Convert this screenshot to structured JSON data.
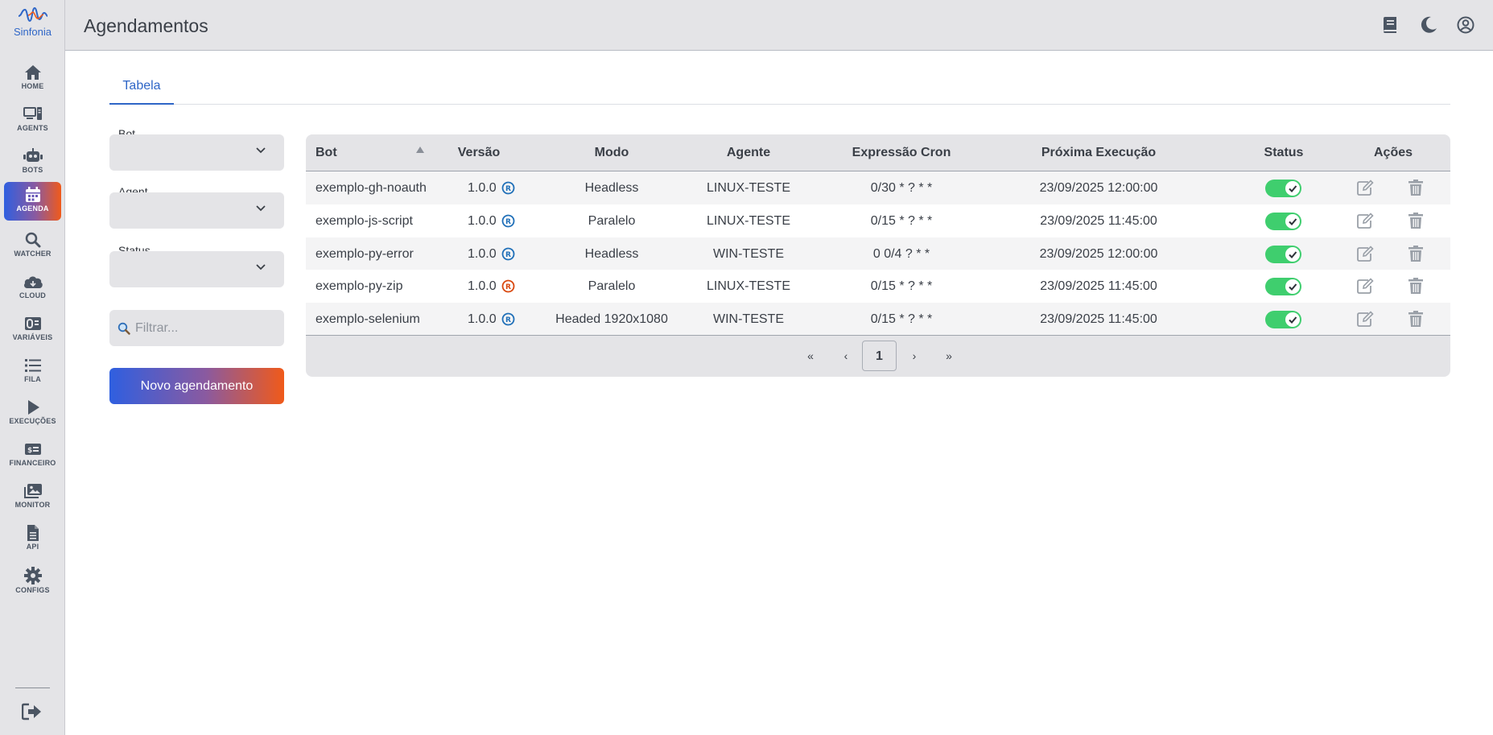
{
  "app": {
    "logo_text": "Sinfonia",
    "brand_color": "#2f66c7",
    "accent_gradient": [
      "#2f5fe0",
      "#8a5aa0",
      "#f05a1a"
    ]
  },
  "sidebar": {
    "items": [
      {
        "label": "HOME",
        "icon": "home-icon"
      },
      {
        "label": "AGENTS",
        "icon": "agents-icon"
      },
      {
        "label": "BOTS",
        "icon": "robot-icon"
      },
      {
        "label": "AGENDA",
        "icon": "calendar-icon",
        "active": true
      },
      {
        "label": "WATCHER",
        "icon": "search-icon"
      },
      {
        "label": "CLOUD",
        "icon": "cloud-icon"
      },
      {
        "label": "VARIÁVEIS",
        "icon": "variables-icon"
      },
      {
        "label": "FILA",
        "icon": "list-icon"
      },
      {
        "label": "EXECUÇÕES",
        "icon": "play-icon"
      },
      {
        "label": "FINANCEIRO",
        "icon": "money-icon"
      },
      {
        "label": "MONITOR",
        "icon": "images-icon"
      },
      {
        "label": "API",
        "icon": "file-icon"
      },
      {
        "label": "CONFIGS",
        "icon": "gear-icon"
      }
    ],
    "logout_icon": "logout-icon"
  },
  "header": {
    "title": "Agendamentos",
    "icons": [
      "book-icon",
      "moon-icon",
      "user-circle-icon"
    ]
  },
  "tabs": [
    {
      "label": "Tabela",
      "active": true
    }
  ],
  "filters": {
    "bot_label": "Bot",
    "agent_label": "Agent",
    "status_label": "Status",
    "search_placeholder": "Filtrar...",
    "new_button": "Novo agendamento"
  },
  "table": {
    "columns": [
      "Bot",
      "Versão",
      "Modo",
      "Agente",
      "Expressão Cron",
      "Próxima Execução",
      "Status",
      "Ações"
    ],
    "sort_column": "Bot",
    "sort_direction": "ascending",
    "rows": [
      {
        "bot": "exemplo-gh-noauth",
        "versao": "1.0.0",
        "reg_color": "#1f6fb8",
        "modo": "Headless",
        "agente": "LINUX-TESTE",
        "cron": "0/30 * ? * *",
        "proxima": "23/09/2025 12:00:00",
        "status": true
      },
      {
        "bot": "exemplo-js-script",
        "versao": "1.0.0",
        "reg_color": "#1f6fb8",
        "modo": "Paralelo",
        "agente": "LINUX-TESTE",
        "cron": "0/15 * ? * *",
        "proxima": "23/09/2025 11:45:00",
        "status": true
      },
      {
        "bot": "exemplo-py-error",
        "versao": "1.0.0",
        "reg_color": "#1f6fb8",
        "modo": "Headless",
        "agente": "WIN-TESTE",
        "cron": "0 0/4 ? * *",
        "proxima": "23/09/2025 12:00:00",
        "status": true
      },
      {
        "bot": "exemplo-py-zip",
        "versao": "1.0.0",
        "reg_color": "#d9480f",
        "modo": "Paralelo",
        "agente": "LINUX-TESTE",
        "cron": "0/15 * ? * *",
        "proxima": "23/09/2025 11:45:00",
        "status": true
      },
      {
        "bot": "exemplo-selenium",
        "versao": "1.0.0",
        "reg_color": "#1f6fb8",
        "modo": "Headed 1920x1080",
        "agente": "WIN-TESTE",
        "cron": "0/15 * ? * *",
        "proxima": "23/09/2025 11:45:00",
        "status": true
      }
    ],
    "toggle_on_color": "#3fce6e"
  },
  "pagination": {
    "first": "«",
    "prev": "‹",
    "current": "1",
    "next": "›",
    "last": "»"
  }
}
